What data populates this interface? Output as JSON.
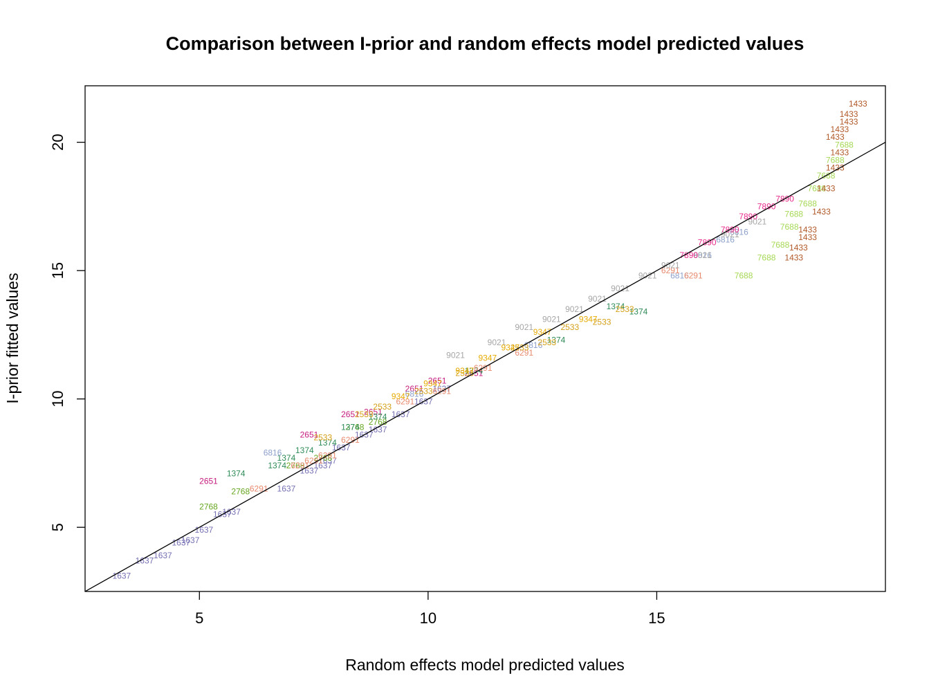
{
  "chart_data": {
    "type": "scatter",
    "title": "Comparison between I-prior and random effects model predicted values",
    "xlabel": "Random effects model predicted values",
    "ylabel": "I-prior fitted values",
    "xlim": [
      2.5,
      20
    ],
    "ylim": [
      2.5,
      22.2
    ],
    "x_ticks": [
      "5",
      "10",
      "15"
    ],
    "y_ticks": [
      "5",
      "10",
      "15",
      "20"
    ],
    "grid": false,
    "legend": "none",
    "marker": "point labels (school id)",
    "reference_line": {
      "type": "identity",
      "slope": 1,
      "intercept": 0,
      "color": "#000000"
    },
    "series": [
      {
        "name": "1637",
        "color": "#7570b3",
        "points": [
          [
            3.3,
            3.1
          ],
          [
            3.8,
            3.7
          ],
          [
            4.2,
            3.9
          ],
          [
            4.6,
            4.4
          ],
          [
            4.8,
            4.5
          ],
          [
            5.1,
            4.9
          ],
          [
            5.5,
            5.5
          ],
          [
            5.7,
            5.6
          ],
          [
            6.9,
            6.5
          ],
          [
            7.4,
            7.2
          ],
          [
            7.7,
            7.4
          ],
          [
            7.8,
            7.6
          ],
          [
            8.1,
            8.1
          ],
          [
            8.6,
            8.6
          ],
          [
            8.9,
            8.8
          ],
          [
            9.4,
            9.4
          ],
          [
            9.9,
            9.9
          ],
          [
            10.3,
            10.4
          ]
        ]
      },
      {
        "name": "2651",
        "color": "#c51b7d",
        "points": [
          [
            5.2,
            6.8
          ],
          [
            7.4,
            8.6
          ],
          [
            8.3,
            9.4
          ],
          [
            8.8,
            9.5
          ],
          [
            10.2,
            10.7
          ],
          [
            11.0,
            11.0
          ],
          [
            9.7,
            10.4
          ]
        ]
      },
      {
        "name": "2768",
        "color": "#66a61e",
        "points": [
          [
            5.2,
            5.8
          ],
          [
            5.9,
            6.4
          ],
          [
            7.1,
            7.4
          ],
          [
            7.7,
            7.7
          ],
          [
            8.4,
            8.9
          ],
          [
            8.9,
            9.1
          ]
        ]
      },
      {
        "name": "1374",
        "color": "#2e8b57",
        "points": [
          [
            5.8,
            7.1
          ],
          [
            6.7,
            7.4
          ],
          [
            6.9,
            7.7
          ],
          [
            7.3,
            8.0
          ],
          [
            7.8,
            8.3
          ],
          [
            8.3,
            8.9
          ],
          [
            8.9,
            9.3
          ],
          [
            11.0,
            11.1
          ],
          [
            12.8,
            12.3
          ],
          [
            14.1,
            13.6
          ],
          [
            14.6,
            13.4
          ]
        ]
      },
      {
        "name": "6816",
        "color": "#8da0cb",
        "points": [
          [
            6.6,
            7.9
          ],
          [
            9.7,
            10.2
          ],
          [
            12.3,
            12.1
          ],
          [
            15.5,
            14.8
          ],
          [
            16.0,
            15.6
          ],
          [
            16.5,
            16.2
          ],
          [
            16.8,
            16.5
          ]
        ]
      },
      {
        "name": "6291",
        "color": "#e78a6e",
        "points": [
          [
            6.3,
            6.5
          ],
          [
            7.2,
            7.4
          ],
          [
            7.5,
            7.6
          ],
          [
            7.8,
            7.8
          ],
          [
            8.3,
            8.4
          ],
          [
            9.5,
            9.9
          ],
          [
            10.3,
            10.3
          ],
          [
            11.2,
            11.2
          ],
          [
            12.1,
            11.8
          ],
          [
            15.3,
            15.0
          ],
          [
            15.8,
            14.8
          ]
        ]
      },
      {
        "name": "2533",
        "color": "#d4a017",
        "points": [
          [
            7.7,
            8.5
          ],
          [
            8.6,
            9.4
          ],
          [
            9.0,
            9.7
          ],
          [
            9.9,
            10.3
          ],
          [
            10.8,
            11.0
          ],
          [
            12.0,
            12.0
          ],
          [
            12.6,
            12.2
          ],
          [
            13.1,
            12.8
          ],
          [
            13.8,
            13.0
          ],
          [
            14.3,
            13.5
          ]
        ]
      },
      {
        "name": "9021",
        "color": "#a6a6a6",
        "points": [
          [
            10.6,
            11.7
          ],
          [
            11.5,
            12.2
          ],
          [
            12.1,
            12.8
          ],
          [
            12.7,
            13.1
          ],
          [
            13.2,
            13.5
          ],
          [
            13.7,
            13.9
          ],
          [
            14.2,
            14.3
          ],
          [
            14.8,
            14.8
          ],
          [
            15.3,
            15.2
          ],
          [
            16.0,
            15.6
          ],
          [
            16.6,
            16.4
          ],
          [
            17.2,
            16.9
          ]
        ]
      },
      {
        "name": "9347",
        "color": "#e6ab02",
        "points": [
          [
            9.4,
            10.1
          ],
          [
            10.1,
            10.6
          ],
          [
            10.8,
            11.1
          ],
          [
            11.3,
            11.6
          ],
          [
            11.8,
            12.0
          ],
          [
            12.5,
            12.6
          ],
          [
            13.5,
            13.1
          ]
        ]
      },
      {
        "name": "7890",
        "color": "#e7298a",
        "points": [
          [
            15.7,
            15.6
          ],
          [
            16.1,
            16.1
          ],
          [
            16.6,
            16.6
          ],
          [
            17.0,
            17.1
          ],
          [
            17.4,
            17.5
          ],
          [
            17.8,
            17.8
          ]
        ]
      },
      {
        "name": "7688",
        "color": "#a6d854",
        "points": [
          [
            16.9,
            14.8
          ],
          [
            17.4,
            15.5
          ],
          [
            17.7,
            16.0
          ],
          [
            17.9,
            16.7
          ],
          [
            18.0,
            17.2
          ],
          [
            18.3,
            17.6
          ],
          [
            18.5,
            18.2
          ],
          [
            18.7,
            18.7
          ],
          [
            18.9,
            19.3
          ],
          [
            19.1,
            19.9
          ]
        ]
      },
      {
        "name": "1433",
        "color": "#b15928",
        "points": [
          [
            18.0,
            15.5
          ],
          [
            18.1,
            15.9
          ],
          [
            18.3,
            16.3
          ],
          [
            18.3,
            16.6
          ],
          [
            18.6,
            17.3
          ],
          [
            18.7,
            18.2
          ],
          [
            18.9,
            19.0
          ],
          [
            19.0,
            19.6
          ],
          [
            18.9,
            20.2
          ],
          [
            19.0,
            20.5
          ],
          [
            19.2,
            20.8
          ],
          [
            19.2,
            21.1
          ],
          [
            19.4,
            21.5
          ]
        ]
      }
    ]
  }
}
